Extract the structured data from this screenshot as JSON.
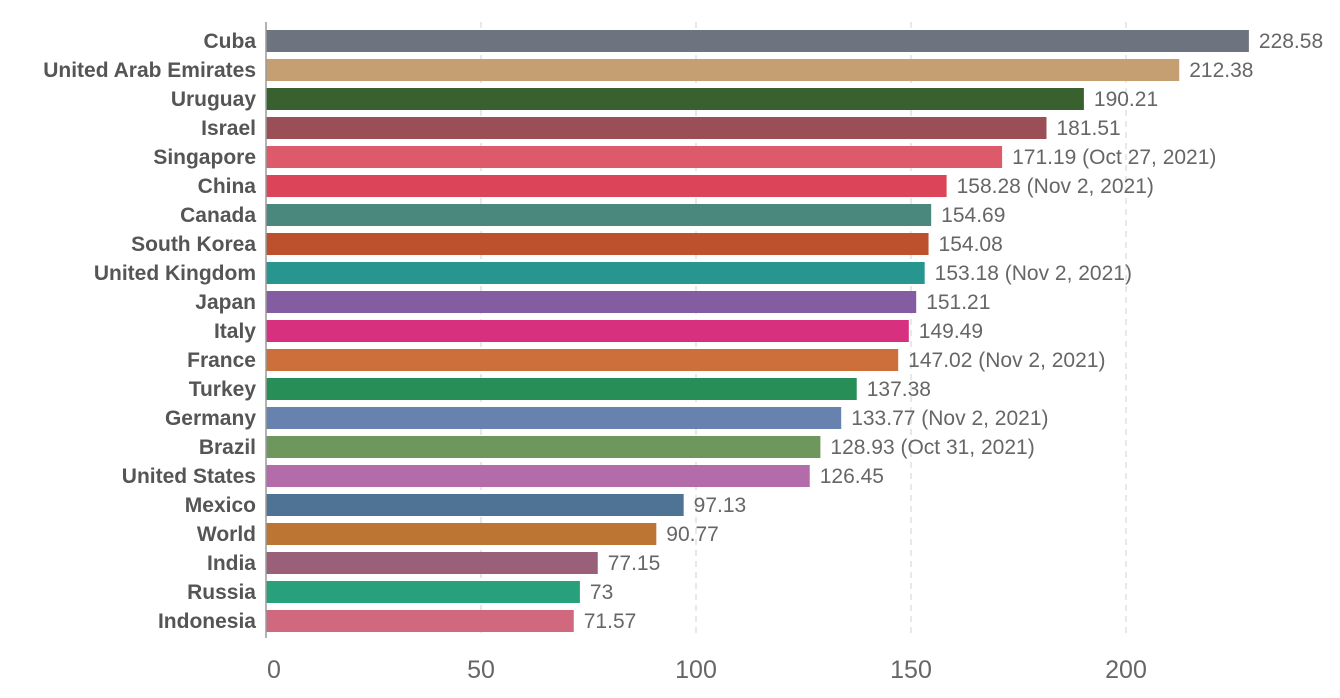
{
  "chart_data": {
    "type": "bar",
    "orientation": "horizontal",
    "title": "",
    "xlabel": "",
    "ylabel": "",
    "xlim": [
      0,
      230
    ],
    "xticks": [
      0,
      50,
      100,
      150,
      200
    ],
    "grid": true,
    "categories": [
      "Cuba",
      "United Arab Emirates",
      "Uruguay",
      "Israel",
      "Singapore",
      "China",
      "Canada",
      "South Korea",
      "United Kingdom",
      "Japan",
      "Italy",
      "France",
      "Turkey",
      "Germany",
      "Brazil",
      "United States",
      "Mexico",
      "World",
      "India",
      "Russia",
      "Indonesia"
    ],
    "values": [
      228.58,
      212.38,
      190.21,
      181.51,
      171.19,
      158.28,
      154.69,
      154.08,
      153.18,
      151.21,
      149.49,
      147.02,
      137.38,
      133.77,
      128.93,
      126.45,
      97.13,
      90.77,
      77.15,
      73,
      71.57
    ],
    "value_labels": [
      "228.58",
      "212.38",
      "190.21",
      "181.51",
      "171.19 (Oct 27, 2021)",
      "158.28 (Nov 2, 2021)",
      "154.69",
      "154.08",
      "153.18 (Nov 2, 2021)",
      "151.21",
      "149.49",
      "147.02 (Nov 2, 2021)",
      "137.38",
      "133.77 (Nov 2, 2021)",
      "128.93 (Oct 31, 2021)",
      "126.45",
      "97.13",
      "90.77",
      "77.15",
      "73",
      "71.57"
    ],
    "colors": [
      "#6e7380",
      "#c59e72",
      "#38612f",
      "#9a4e55",
      "#dc5a6a",
      "#dc4459",
      "#4a877d",
      "#bd512d",
      "#26968f",
      "#835ca1",
      "#d6307f",
      "#cd6f3b",
      "#288e58",
      "#6882af",
      "#6e975e",
      "#b36ba9",
      "#4e7394",
      "#bd7534",
      "#9b6079",
      "#27a07b",
      "#d0697d"
    ]
  }
}
